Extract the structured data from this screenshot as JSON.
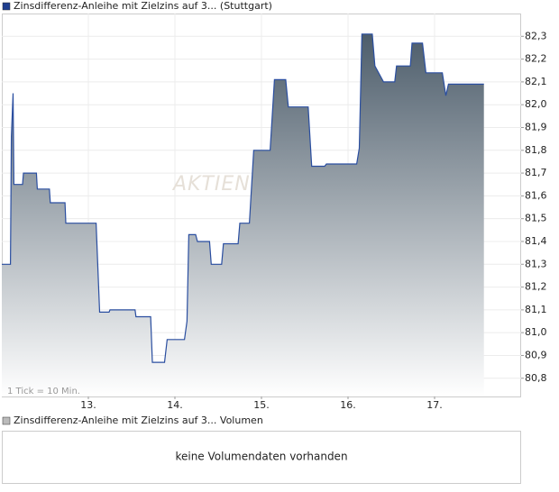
{
  "chart_data": {
    "type": "area",
    "title": "Zinsdifferenz-Anleihe mit Zielzins auf 3... (Stuttgart)",
    "watermark": "AKTIEN",
    "annotation": "1 Tick = 10 Min.",
    "color": "#2a4ea0",
    "fill_top": "#4d5d6b",
    "fill_bottom": "#ffffff",
    "grid": true,
    "x": [
      12.0,
      12.1,
      12.11,
      12.13,
      12.14,
      12.24,
      12.25,
      12.4,
      12.41,
      12.55,
      12.56,
      12.73,
      12.74,
      13.09,
      13.13,
      13.24,
      13.25,
      13.54,
      13.55,
      13.72,
      13.74,
      13.88,
      13.91,
      14.11,
      14.14,
      14.16,
      14.24,
      14.26,
      14.4,
      14.42,
      14.54,
      14.56,
      14.73,
      14.75,
      14.86,
      14.91,
      15.1,
      15.15,
      15.28,
      15.31,
      15.54,
      15.58,
      15.73,
      15.75,
      16.1,
      16.13,
      16.16,
      16.28,
      16.31,
      16.41,
      16.54,
      16.56,
      16.72,
      16.74,
      16.86,
      16.9,
      17.09,
      17.13,
      17.16,
      17.57
    ],
    "values": [
      81.3,
      81.3,
      81.86,
      82.05,
      81.65,
      81.65,
      81.7,
      81.7,
      81.63,
      81.63,
      81.57,
      81.57,
      81.48,
      81.48,
      81.09,
      81.09,
      81.1,
      81.1,
      81.07,
      81.07,
      80.87,
      80.87,
      80.97,
      80.97,
      81.05,
      81.43,
      81.43,
      81.4,
      81.4,
      81.3,
      81.3,
      81.39,
      81.39,
      81.48,
      81.48,
      81.8,
      81.8,
      82.11,
      82.11,
      81.99,
      81.99,
      81.73,
      81.73,
      81.74,
      81.74,
      81.81,
      82.31,
      82.31,
      82.17,
      82.1,
      82.1,
      82.17,
      82.17,
      82.27,
      82.27,
      82.14,
      82.14,
      82.04,
      82.09,
      82.09
    ],
    "xlim": [
      12,
      18
    ],
    "xticks": [
      {
        "value": 13,
        "label": "13."
      },
      {
        "value": 14,
        "label": "14."
      },
      {
        "value": 15,
        "label": "15."
      },
      {
        "value": 16,
        "label": "16."
      },
      {
        "value": 17,
        "label": "17."
      }
    ],
    "ylim": [
      80.72,
      82.4
    ],
    "yticks": [
      {
        "value": 80.8,
        "label": "80,8"
      },
      {
        "value": 80.9,
        "label": "80,9"
      },
      {
        "value": 81.0,
        "label": "81,0"
      },
      {
        "value": 81.1,
        "label": "81,1"
      },
      {
        "value": 81.2,
        "label": "81,2"
      },
      {
        "value": 81.3,
        "label": "81,3"
      },
      {
        "value": 81.4,
        "label": "81,4"
      },
      {
        "value": 81.5,
        "label": "81,5"
      },
      {
        "value": 81.6,
        "label": "81,6"
      },
      {
        "value": 81.7,
        "label": "81,7"
      },
      {
        "value": 81.8,
        "label": "81,8"
      },
      {
        "value": 81.9,
        "label": "81,9"
      },
      {
        "value": 82.0,
        "label": "82,0"
      },
      {
        "value": 82.1,
        "label": "82,1"
      },
      {
        "value": 82.2,
        "label": "82,2"
      },
      {
        "value": 82.3,
        "label": "82,3"
      }
    ],
    "volume_title": "Zinsdifferenz-Anleihe mit Zielzins auf 3... Volumen",
    "volume_message": "keine Volumendaten vorhanden"
  }
}
